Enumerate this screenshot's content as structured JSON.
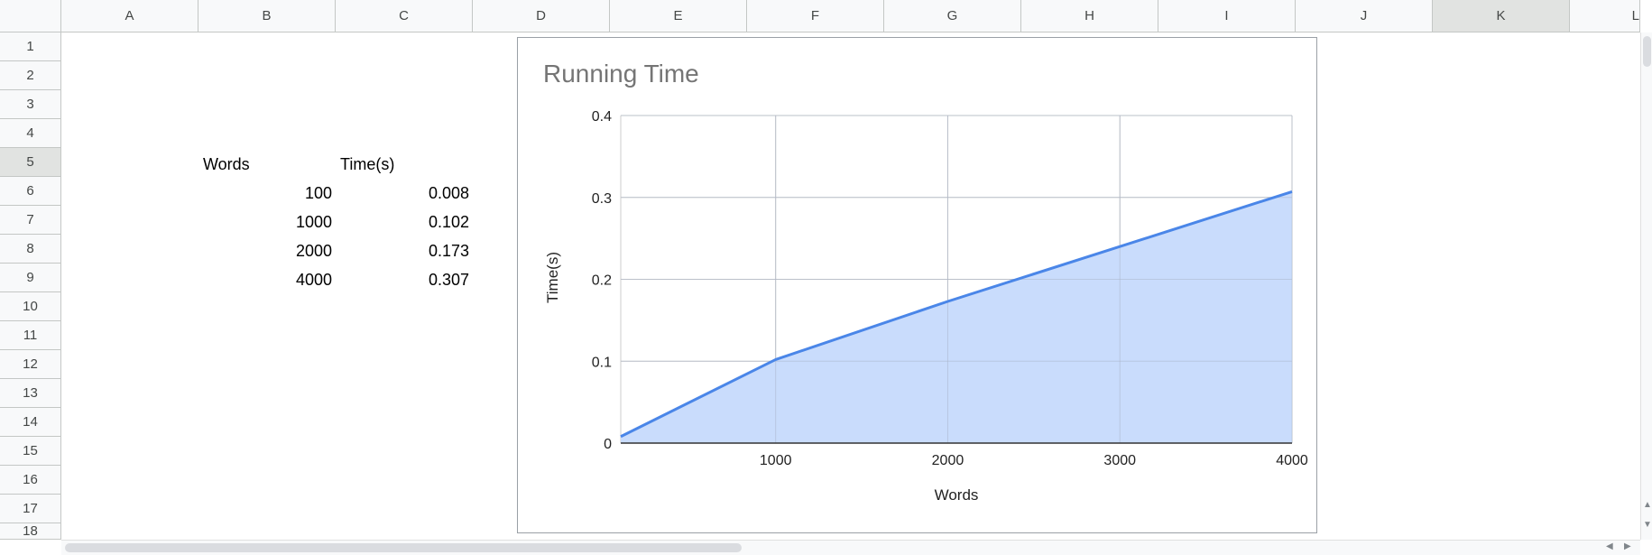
{
  "sheet": {
    "columns": [
      "A",
      "B",
      "C",
      "D",
      "E",
      "F",
      "G",
      "H",
      "I",
      "J",
      "K",
      "L"
    ],
    "selected_column": "K",
    "rows": [
      "1",
      "2",
      "3",
      "4",
      "5",
      "6",
      "7",
      "8",
      "9",
      "10",
      "11",
      "12",
      "13",
      "14",
      "15",
      "16",
      "17",
      "18"
    ],
    "selected_row": "5",
    "table": {
      "headers": [
        "Words",
        "Time(s)"
      ],
      "rows": [
        {
          "words": "100",
          "time": "0.008"
        },
        {
          "words": "1000",
          "time": "0.102"
        },
        {
          "words": "2000",
          "time": "0.173"
        },
        {
          "words": "4000",
          "time": "0.307"
        }
      ]
    }
  },
  "chart_data": {
    "type": "area",
    "title": "Running Time",
    "xlabel": "Words",
    "ylabel": "Time(s)",
    "x": [
      100,
      1000,
      2000,
      4000
    ],
    "series": [
      {
        "values": [
          0.008,
          0.102,
          0.173,
          0.307
        ]
      }
    ],
    "xlim": [
      100,
      4000
    ],
    "ylim": [
      0,
      0.4
    ],
    "x_ticks": [
      "1000",
      "2000",
      "3000",
      "4000"
    ],
    "y_ticks": [
      "0",
      "0.1",
      "0.2",
      "0.3",
      "0.4"
    ],
    "grid": true,
    "legend": "none",
    "line_color": "#4a86e8",
    "fill_color": "#c6dafc"
  }
}
